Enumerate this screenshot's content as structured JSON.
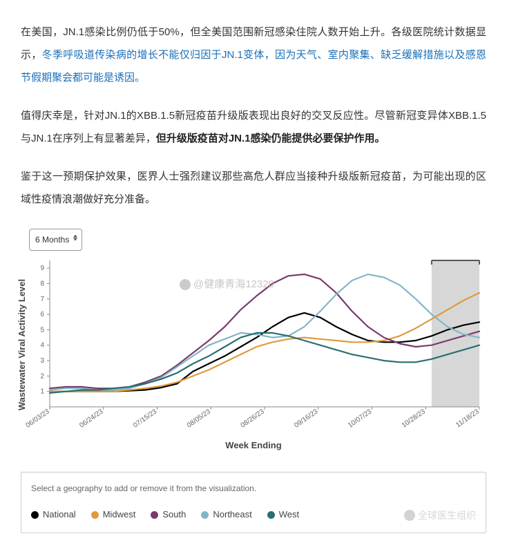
{
  "paragraphs": {
    "p1_a": "在美国，JN.1感染比例仍低于50%，但全美国范围新冠感染住院人数开始上升。各级医院统计数据显示，",
    "p1_link": "冬季呼吸道传染病的增长不能仅归因于JN.1变体，因为天气、室内聚集、缺乏缓解措施以及感恩节假期聚会都可能是诱因。",
    "p2_a": "值得庆幸是，针对JN.1的XBB.1.5新冠疫苗升级版表现出良好的交叉反应性。尽管新冠变异体XBB.1.5与JN.1在序列上有显著差异，",
    "p2_bold": "但升级版疫苗对JN.1感染仍能提供必要保护作用。",
    "p3_a": "鉴于这一预期保护效果，",
    "p3_b": "医界人士强烈建议那些高危人群应当接种升级版新冠疫苗，为可能出现的区域性疫情浪潮做好充分准备。"
  },
  "chart": {
    "dropdown_label": "6 Months",
    "ylabel": "Wastewater Viral Activity Level",
    "xlabel": "Week Ending",
    "ylim": [
      0,
      9.5
    ],
    "ytick_step": 1,
    "yticks_count": 9,
    "xticks": [
      "06/03/23",
      "06/24/23",
      "07/15/23",
      "08/05/23",
      "08/26/23",
      "09/16/23",
      "10/07/23",
      "10/28/23",
      "11/18/23"
    ],
    "n_points": 28,
    "shade_start_idx": 24,
    "shade_end_idx": 27,
    "background_color": "#ffffff",
    "axis_color": "#888888",
    "tick_font_size": 10,
    "line_width": 2.2,
    "series": [
      {
        "key": "national",
        "label": "National",
        "color": "#000000",
        "values": [
          1.0,
          1.0,
          1.0,
          1.0,
          1.0,
          1.05,
          1.1,
          1.25,
          1.5,
          2.3,
          2.8,
          3.3,
          3.9,
          4.5,
          5.2,
          5.8,
          6.1,
          5.8,
          5.2,
          4.7,
          4.3,
          4.2,
          4.2,
          4.3,
          4.6,
          5.0,
          5.3,
          5.5
        ]
      },
      {
        "key": "midwest",
        "label": "Midwest",
        "color": "#e09a3e",
        "values": [
          1.0,
          1.0,
          1.0,
          1.0,
          1.0,
          1.1,
          1.2,
          1.35,
          1.6,
          2.0,
          2.4,
          2.9,
          3.4,
          3.9,
          4.2,
          4.4,
          4.5,
          4.4,
          4.3,
          4.2,
          4.2,
          4.3,
          4.6,
          5.1,
          5.7,
          6.3,
          6.9,
          7.4
        ]
      },
      {
        "key": "south",
        "label": "South",
        "color": "#7b3a6b",
        "values": [
          1.2,
          1.3,
          1.3,
          1.2,
          1.2,
          1.3,
          1.6,
          2.0,
          2.7,
          3.5,
          4.3,
          5.2,
          6.3,
          7.2,
          8.0,
          8.5,
          8.6,
          8.3,
          7.4,
          6.2,
          5.2,
          4.5,
          4.1,
          3.9,
          4.0,
          4.3,
          4.6,
          4.9
        ]
      },
      {
        "key": "northeast",
        "label": "Northeast",
        "color": "#7fb8c9",
        "values": [
          1.1,
          1.2,
          1.2,
          1.1,
          1.1,
          1.2,
          1.5,
          1.9,
          2.6,
          3.3,
          4.0,
          4.4,
          4.8,
          4.7,
          4.5,
          4.6,
          5.2,
          6.2,
          7.3,
          8.2,
          8.6,
          8.4,
          7.9,
          7.0,
          6.0,
          5.2,
          4.7,
          4.5
        ]
      },
      {
        "key": "west",
        "label": "West",
        "color": "#2a6e6e",
        "values": [
          0.9,
          1.0,
          1.1,
          1.1,
          1.2,
          1.3,
          1.5,
          1.8,
          2.2,
          2.8,
          3.3,
          3.9,
          4.5,
          4.8,
          4.8,
          4.6,
          4.3,
          4.0,
          3.7,
          3.4,
          3.2,
          3.0,
          2.9,
          2.9,
          3.1,
          3.4,
          3.7,
          4.0
        ]
      }
    ]
  },
  "legend": {
    "instruction": "Select a geography to add or remove it from the visualization."
  },
  "watermarks": {
    "wm1": "@健康青海12320",
    "wm2": "全球医生组织"
  }
}
